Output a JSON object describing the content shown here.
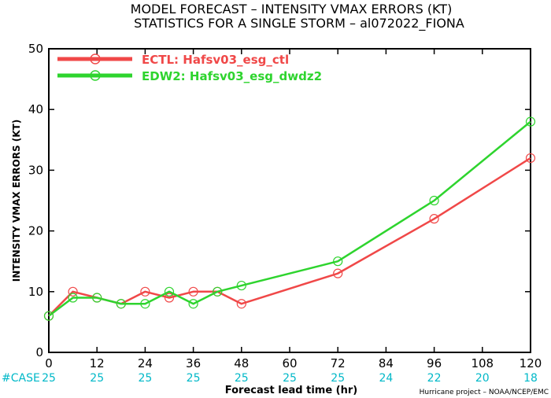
{
  "chart_data": {
    "type": "line",
    "title": "MODEL FORECAST – INTENSITY VMAX ERRORS (KT)",
    "subtitle": "STATISTICS FOR A SINGLE STORM – al072022_FIONA",
    "xlabel": "Forecast lead time (hr)",
    "ylabel": "INTENSITY VMAX ERRORS (KT)",
    "xlim": [
      0,
      120
    ],
    "ylim": [
      0,
      50
    ],
    "xticks": [
      0,
      12,
      24,
      36,
      48,
      60,
      72,
      84,
      96,
      108,
      120
    ],
    "yticks": [
      0,
      10,
      20,
      30,
      40,
      50
    ],
    "legend_position": "top-left",
    "grid": false,
    "series": [
      {
        "name": "ECTL: Hafsv03_esg_ctl",
        "color": "#f04848",
        "x": [
          0,
          6,
          12,
          18,
          24,
          30,
          36,
          42,
          48,
          72,
          96,
          120
        ],
        "y": [
          6,
          10,
          9,
          8,
          10,
          9,
          10,
          10,
          8,
          13,
          22,
          32
        ]
      },
      {
        "name": "EDW2: Hafsv03_esg_dwdz2",
        "color": "#2ed42e",
        "x": [
          0,
          6,
          12,
          18,
          24,
          30,
          36,
          42,
          48,
          72,
          96,
          120
        ],
        "y": [
          6,
          9,
          9,
          8,
          8,
          10,
          8,
          10,
          11,
          15,
          25,
          38
        ]
      }
    ],
    "case_label": "#CASE",
    "cases": [
      {
        "x": 0,
        "n": "25"
      },
      {
        "x": 12,
        "n": "25"
      },
      {
        "x": 24,
        "n": "25"
      },
      {
        "x": 36,
        "n": "25"
      },
      {
        "x": 48,
        "n": "25"
      },
      {
        "x": 60,
        "n": "25"
      },
      {
        "x": 72,
        "n": "25"
      },
      {
        "x": 84,
        "n": "24"
      },
      {
        "x": 96,
        "n": "22"
      },
      {
        "x": 108,
        "n": "20"
      },
      {
        "x": 120,
        "n": "18"
      }
    ],
    "credit": "Hurricane project – NOAA/NCEP/EMC"
  }
}
